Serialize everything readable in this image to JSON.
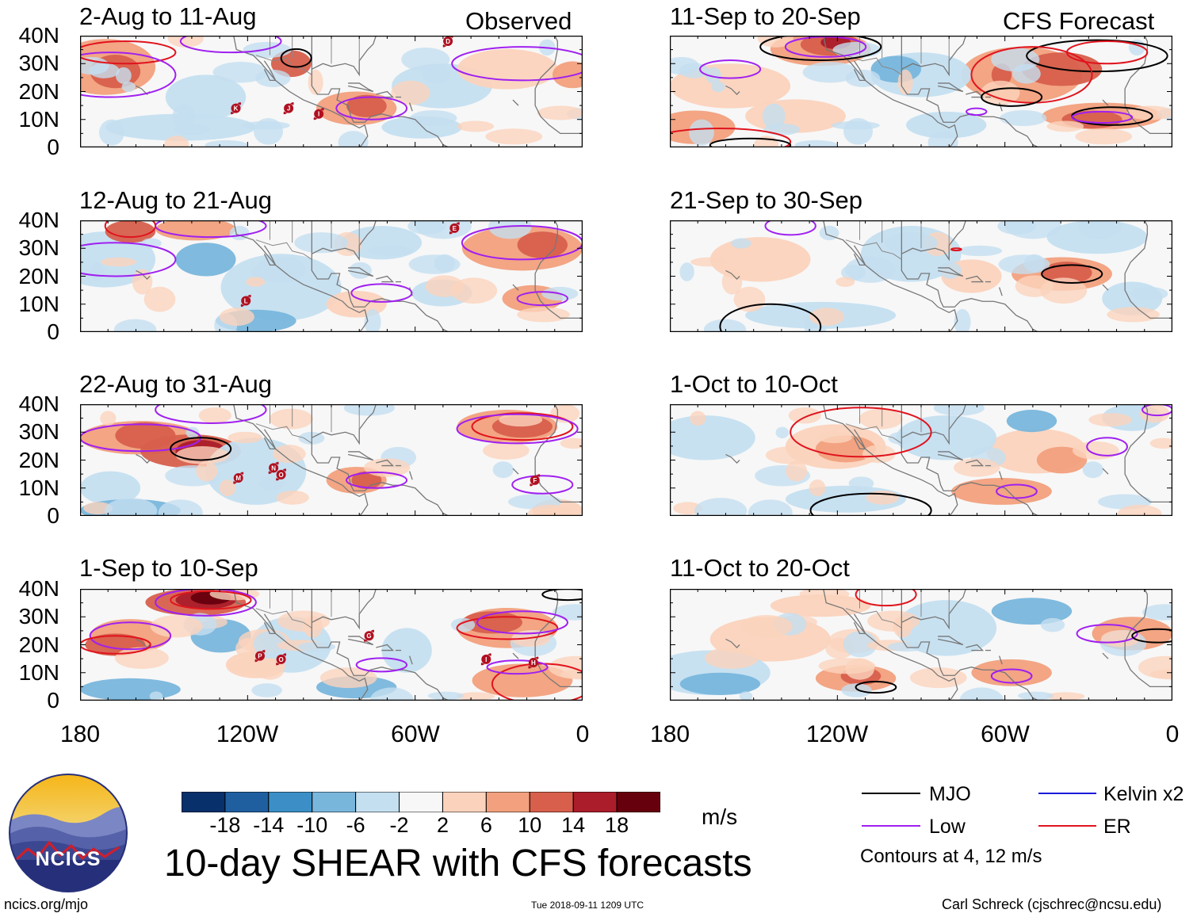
{
  "main_title": "10-day SHEAR with CFS forecasts",
  "observed_label": "Observed",
  "forecast_label": "CFS Forecast",
  "left_panels": [
    {
      "title": "2-Aug to 11-Aug"
    },
    {
      "title": "12-Aug to 21-Aug"
    },
    {
      "title": "22-Aug to 31-Aug"
    },
    {
      "title": "1-Sep to 10-Sep"
    }
  ],
  "right_panels": [
    {
      "title": "11-Sep to 20-Sep"
    },
    {
      "title": "21-Sep to 30-Sep"
    },
    {
      "title": "1-Oct to 10-Oct"
    },
    {
      "title": "11-Oct to 20-Oct"
    }
  ],
  "lat_labels": [
    "40N",
    "30N",
    "20N",
    "10N",
    "0"
  ],
  "lon_labels": [
    "180",
    "120W",
    "60W",
    "0"
  ],
  "colorbar": {
    "unit": "m/s",
    "tick_labels": [
      "-18",
      "-14",
      "-10",
      "-6",
      "-2",
      "2",
      "6",
      "10",
      "14",
      "18"
    ],
    "colors": [
      "#08306b",
      "#1f5fa0",
      "#3b8fc6",
      "#79b6dc",
      "#c4dff0",
      "#f7f7f7",
      "#fbd3bd",
      "#f2a07d",
      "#d75f4c",
      "#ab1d2a",
      "#67000d"
    ]
  },
  "legend": {
    "items": [
      {
        "label": "MJO",
        "color": "#000000"
      },
      {
        "label": "Kelvin x2",
        "color": "#1a1adb"
      },
      {
        "label": "Low",
        "color": "#a020f0"
      },
      {
        "label": "ER",
        "color": "#e0141e"
      }
    ],
    "note": "Contours at 4, 12 m/s"
  },
  "logo_text": "NCICS",
  "footer": {
    "url": "ncics.org/mjo",
    "timestamp": "Tue 2018-09-11 1209 UTC",
    "credit": "Carl Schreck (cjschrec@ncsu.edu)"
  },
  "chart_data": {
    "type": "heatmap",
    "title": "10-day SHEAR with CFS forecasts",
    "variable": "Vertical wind shear anomaly",
    "unit": "m/s",
    "x_axis": {
      "ticks": [
        "180",
        "120W",
        "60W",
        "0"
      ],
      "range": [
        -180,
        0
      ]
    },
    "y_axis": {
      "ticks": [
        "0",
        "10N",
        "20N",
        "30N",
        "40N"
      ],
      "range": [
        0,
        40
      ]
    },
    "color_levels": [
      -18,
      -14,
      -10,
      -6,
      -2,
      2,
      6,
      10,
      14,
      18
    ],
    "contour_levels": [
      4,
      12
    ],
    "panels": [
      {
        "period": "2-Aug to 11-Aug",
        "type": "observed",
        "storms": [
          "K",
          "J",
          "I",
          "D"
        ]
      },
      {
        "period": "12-Aug to 21-Aug",
        "type": "observed",
        "storms": [
          "L",
          "E"
        ]
      },
      {
        "period": "22-Aug to 31-Aug",
        "type": "observed",
        "storms": [
          "M",
          "N",
          "O",
          "F"
        ]
      },
      {
        "period": "1-Sep to 10-Sep",
        "type": "observed",
        "storms": [
          "P",
          "O",
          "G",
          "I",
          "H"
        ]
      },
      {
        "period": "11-Sep to 20-Sep",
        "type": "CFS forecast",
        "storms": []
      },
      {
        "period": "21-Sep to 30-Sep",
        "type": "CFS forecast",
        "storms": []
      },
      {
        "period": "1-Oct to 10-Oct",
        "type": "CFS forecast",
        "storms": []
      },
      {
        "period": "11-Oct to 20-Oct",
        "type": "CFS forecast",
        "storms": []
      }
    ],
    "legend": [
      "MJO",
      "Kelvin x2",
      "Low",
      "ER"
    ]
  }
}
